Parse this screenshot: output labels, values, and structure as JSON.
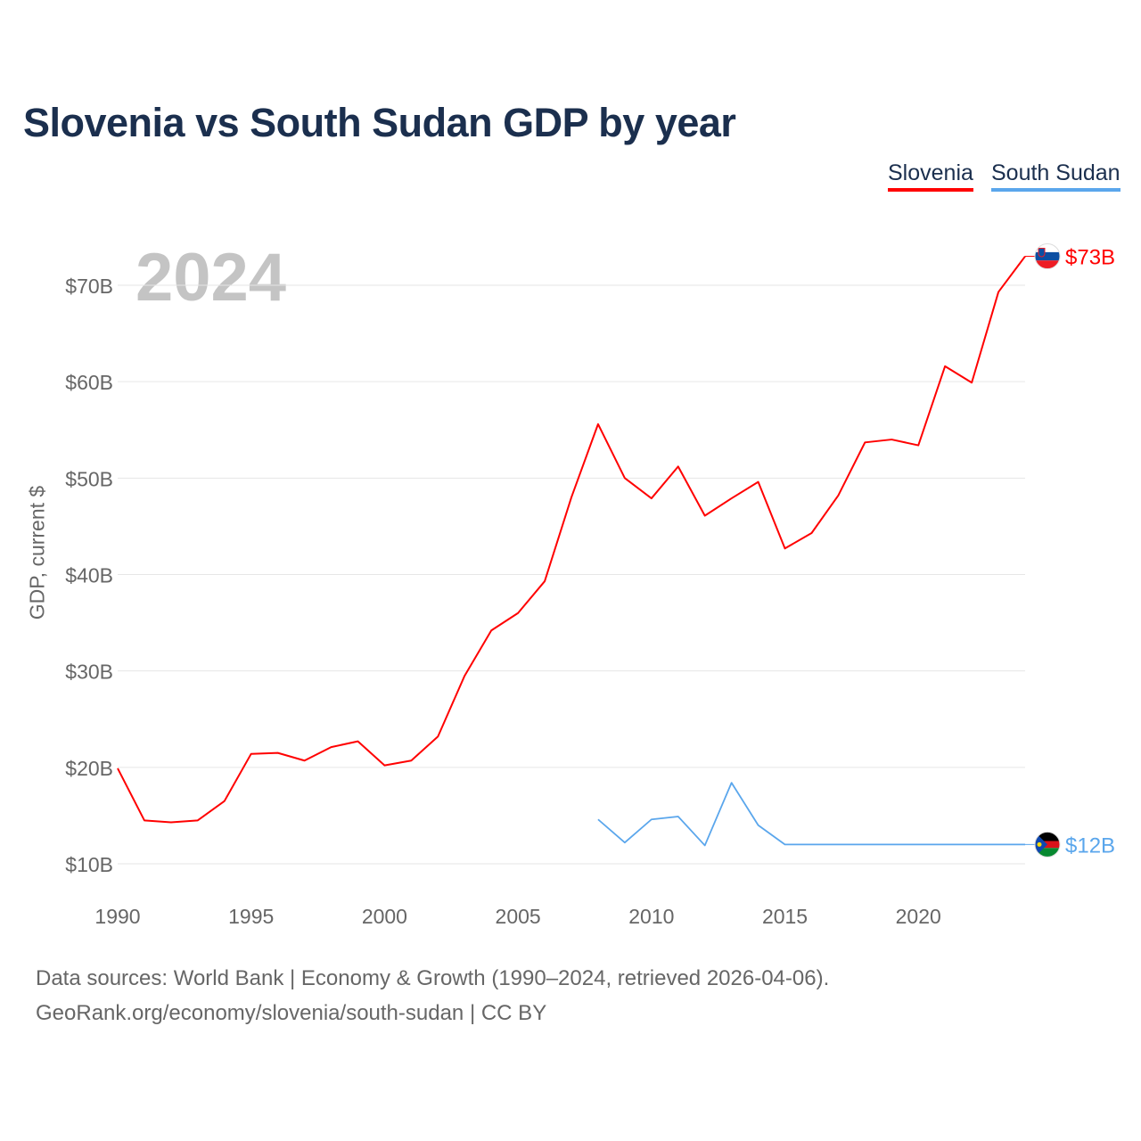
{
  "title": "Slovenia vs South Sudan GDP by year",
  "legend": [
    "Slovenia",
    "South Sudan"
  ],
  "year_label": "2024",
  "footer": {
    "line1": "Data sources: World Bank | Economy & Growth (1990–2024, retrieved 2026-04-06).",
    "line2": "GeoRank.org/economy/slovenia/south-sudan | CC BY"
  },
  "chart_data": {
    "type": "line",
    "title": "Slovenia vs South Sudan GDP by year",
    "xlabel": "",
    "ylabel": "GDP, current $",
    "xlim": [
      1990,
      2024
    ],
    "ylim": [
      10,
      70
    ],
    "x_ticks": [
      1990,
      1995,
      2000,
      2005,
      2010,
      2015,
      2020
    ],
    "x_tick_labels": [
      "1990",
      "1995",
      "2000",
      "2005",
      "2010",
      "2015",
      "2020"
    ],
    "y_ticks": [
      10,
      20,
      30,
      40,
      50,
      60,
      70
    ],
    "y_tick_labels": [
      "$10B",
      "$20B",
      "$30B",
      "$40B",
      "$50B",
      "$60B",
      "$70B"
    ],
    "grid": true,
    "legend_position": "top-right",
    "series": [
      {
        "name": "Slovenia",
        "color": "#ff0000",
        "end_label": "$73B",
        "flag": "slovenia-flag-icon",
        "x": [
          1990,
          1991,
          1992,
          1993,
          1994,
          1995,
          1996,
          1997,
          1998,
          1999,
          2000,
          2001,
          2002,
          2003,
          2004,
          2005,
          2006,
          2007,
          2008,
          2009,
          2010,
          2011,
          2012,
          2013,
          2014,
          2015,
          2016,
          2017,
          2018,
          2019,
          2020,
          2021,
          2022,
          2023,
          2024
        ],
        "values": [
          19.9,
          14.5,
          14.3,
          14.5,
          16.5,
          21.4,
          21.5,
          20.7,
          22.1,
          22.7,
          20.2,
          20.7,
          23.2,
          29.5,
          34.2,
          36.0,
          39.3,
          48.0,
          55.6,
          50.0,
          47.9,
          51.2,
          46.1,
          47.9,
          49.6,
          42.7,
          44.3,
          48.2,
          53.7,
          54.0,
          53.4,
          61.6,
          59.9,
          69.3,
          73.0
        ]
      },
      {
        "name": "South Sudan",
        "color": "#5aa6ec",
        "end_label": "$12B",
        "flag": "south-sudan-flag-icon",
        "x": [
          2008,
          2009,
          2010,
          2011,
          2012,
          2013,
          2014,
          2015,
          2016,
          2017,
          2018,
          2019,
          2020,
          2021,
          2022,
          2023,
          2024
        ],
        "values": [
          14.6,
          12.2,
          14.6,
          14.9,
          11.9,
          18.4,
          14.0,
          12.0,
          12.0,
          12.0,
          12.0,
          12.0,
          12.0,
          12.0,
          12.0,
          12.0,
          12.0
        ]
      }
    ]
  }
}
